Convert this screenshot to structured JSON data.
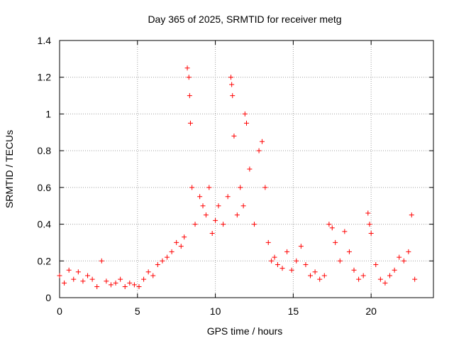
{
  "chart_data": {
    "type": "scatter",
    "title": "Day 365 of 2025, SRMTID for receiver metg",
    "xlabel": "GPS time / hours",
    "ylabel": "SRMTID / TECUs",
    "xlim": [
      0,
      24
    ],
    "ylim": [
      0,
      1.4
    ],
    "x_ticks": [
      0,
      5,
      10,
      15,
      20
    ],
    "x_tick_labels": [
      "0",
      "5",
      "10",
      "15",
      "20"
    ],
    "y_ticks": [
      0,
      0.2,
      0.4,
      0.6,
      0.8,
      1.0,
      1.2,
      1.4
    ],
    "y_tick_labels": [
      "0",
      "0.2",
      "0.4",
      "0.6",
      "0.8",
      "1",
      "1.2",
      "1.4"
    ],
    "grid": true,
    "marker": "+",
    "color": "#ff0000",
    "series": [
      {
        "name": "SRMTID",
        "x": [
          0.0,
          0.3,
          0.6,
          0.9,
          1.2,
          1.5,
          1.8,
          2.1,
          2.4,
          2.7,
          3.0,
          3.3,
          3.6,
          3.9,
          4.2,
          4.5,
          4.8,
          5.1,
          5.4,
          5.7,
          6.0,
          6.3,
          6.6,
          6.9,
          7.2,
          7.5,
          7.8,
          8.0,
          8.2,
          8.3,
          8.35,
          8.4,
          8.5,
          8.7,
          9.0,
          9.2,
          9.4,
          9.6,
          9.8,
          10.0,
          10.2,
          10.5,
          10.8,
          11.0,
          11.05,
          11.1,
          11.2,
          11.4,
          11.6,
          11.8,
          11.9,
          12.0,
          12.2,
          12.5,
          12.8,
          13.0,
          13.2,
          13.4,
          13.6,
          13.8,
          14.0,
          14.3,
          14.6,
          14.9,
          15.2,
          15.5,
          15.8,
          16.1,
          16.4,
          16.7,
          17.0,
          17.3,
          17.5,
          17.7,
          18.0,
          18.3,
          18.6,
          18.9,
          19.2,
          19.5,
          19.8,
          19.9,
          20.0,
          20.3,
          20.6,
          20.9,
          21.2,
          21.5,
          21.8,
          22.1,
          22.4,
          22.6,
          22.8
        ],
        "y": [
          0.12,
          0.08,
          0.15,
          0.1,
          0.14,
          0.09,
          0.12,
          0.1,
          0.06,
          0.2,
          0.09,
          0.07,
          0.08,
          0.1,
          0.06,
          0.08,
          0.07,
          0.06,
          0.1,
          0.14,
          0.12,
          0.18,
          0.2,
          0.22,
          0.25,
          0.3,
          0.28,
          0.33,
          1.25,
          1.2,
          1.1,
          0.95,
          0.6,
          0.4,
          0.55,
          0.5,
          0.45,
          0.6,
          0.35,
          0.42,
          0.5,
          0.4,
          0.55,
          1.2,
          1.16,
          1.1,
          0.88,
          0.45,
          0.6,
          0.5,
          1.0,
          0.95,
          0.7,
          0.4,
          0.8,
          0.85,
          0.6,
          0.3,
          0.2,
          0.22,
          0.18,
          0.16,
          0.25,
          0.15,
          0.2,
          0.28,
          0.18,
          0.12,
          0.14,
          0.1,
          0.12,
          0.4,
          0.38,
          0.3,
          0.2,
          0.36,
          0.25,
          0.15,
          0.1,
          0.12,
          0.46,
          0.4,
          0.35,
          0.18,
          0.1,
          0.08,
          0.12,
          0.15,
          0.22,
          0.2,
          0.25,
          0.45,
          0.1
        ]
      }
    ]
  }
}
